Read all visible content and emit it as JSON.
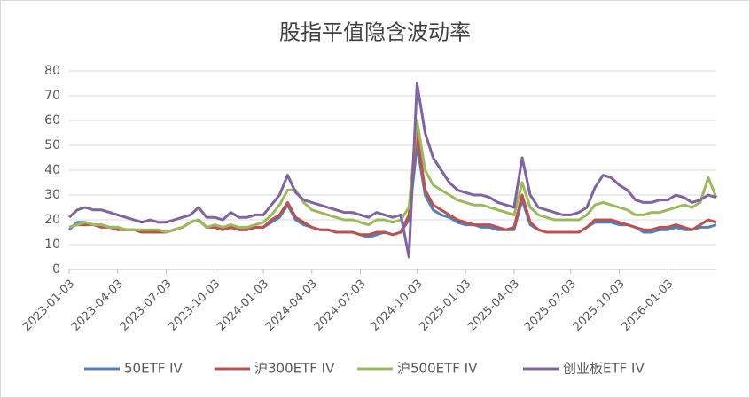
{
  "chart_data": {
    "type": "line",
    "title": "股指平值隐含波动率",
    "x": [
      "2023-01-03",
      "2023-01-17",
      "2023-02-03",
      "2023-02-17",
      "2023-03-03",
      "2023-03-17",
      "2023-04-03",
      "2023-04-17",
      "2023-05-03",
      "2023-05-17",
      "2023-06-03",
      "2023-06-17",
      "2023-07-03",
      "2023-07-17",
      "2023-08-03",
      "2023-08-17",
      "2023-09-03",
      "2023-09-17",
      "2023-10-03",
      "2023-10-17",
      "2023-11-03",
      "2023-11-17",
      "2023-12-03",
      "2023-12-17",
      "2024-01-03",
      "2024-01-17",
      "2024-02-03",
      "2024-02-17",
      "2024-03-03",
      "2024-03-17",
      "2024-04-03",
      "2024-04-17",
      "2024-05-03",
      "2024-05-17",
      "2024-06-03",
      "2024-06-17",
      "2024-07-03",
      "2024-07-17",
      "2024-08-03",
      "2024-08-17",
      "2024-09-03",
      "2024-09-17",
      "2024-09-25",
      "2024-10-03",
      "2024-10-17",
      "2024-11-03",
      "2024-11-17",
      "2024-12-03",
      "2024-12-17",
      "2025-01-03",
      "2025-01-17",
      "2025-02-03",
      "2025-02-17",
      "2025-03-03",
      "2025-03-17",
      "2025-04-03",
      "2025-04-08",
      "2025-04-17",
      "2025-05-03",
      "2025-05-17",
      "2025-06-03",
      "2025-06-17",
      "2025-07-03",
      "2025-07-17",
      "2025-08-03",
      "2025-08-17",
      "2025-09-03",
      "2025-09-17",
      "2025-10-03",
      "2025-10-17",
      "2025-11-03",
      "2025-11-17",
      "2025-12-03",
      "2025-12-17",
      "2026-01-03",
      "2026-01-17",
      "2026-02-03",
      "2026-02-17",
      "2026-03-03",
      "2026-03-17",
      "2026-04-03"
    ],
    "series": [
      {
        "name": "50ETF IV",
        "color": "#4f81bd",
        "values": [
          16,
          19,
          19,
          18,
          18,
          17,
          17,
          16,
          16,
          15,
          16,
          15,
          15,
          16,
          17,
          19,
          20,
          17,
          17,
          16,
          17,
          16,
          16,
          17,
          17,
          19,
          21,
          26,
          20,
          18,
          17,
          16,
          16,
          15,
          15,
          15,
          14,
          13,
          14,
          15,
          14,
          15,
          20,
          50,
          30,
          24,
          22,
          21,
          19,
          18,
          18,
          17,
          17,
          16,
          16,
          16,
          28,
          18,
          16,
          15,
          15,
          15,
          15,
          15,
          17,
          19,
          19,
          19,
          18,
          18,
          17,
          15,
          15,
          16,
          16,
          17,
          16,
          16,
          17,
          17,
          18
        ]
      },
      {
        "name": "沪300ETF IV",
        "color": "#c0504d",
        "values": [
          17,
          18,
          18,
          18,
          17,
          17,
          16,
          16,
          16,
          15,
          15,
          15,
          15,
          16,
          17,
          19,
          20,
          17,
          17,
          16,
          17,
          16,
          16,
          17,
          17,
          20,
          22,
          27,
          21,
          19,
          17,
          16,
          16,
          15,
          15,
          15,
          14,
          14,
          15,
          15,
          14,
          15,
          22,
          55,
          32,
          26,
          24,
          22,
          20,
          19,
          18,
          18,
          18,
          17,
          16,
          17,
          30,
          19,
          16,
          15,
          15,
          15,
          15,
          15,
          17,
          20,
          20,
          20,
          19,
          18,
          17,
          16,
          16,
          17,
          17,
          18,
          17,
          16,
          18,
          20,
          19
        ]
      },
      {
        "name": "沪500ETF IV",
        "color": "#9bbb59",
        "values": [
          17,
          18,
          19,
          18,
          18,
          17,
          17,
          16,
          16,
          16,
          16,
          16,
          15,
          16,
          17,
          19,
          20,
          17,
          18,
          17,
          18,
          17,
          17,
          18,
          19,
          22,
          26,
          32,
          32,
          27,
          24,
          23,
          22,
          21,
          20,
          20,
          19,
          18,
          20,
          20,
          19,
          20,
          25,
          60,
          40,
          34,
          32,
          30,
          28,
          27,
          26,
          26,
          25,
          24,
          23,
          22,
          35,
          25,
          22,
          21,
          20,
          20,
          20,
          20,
          22,
          26,
          27,
          26,
          25,
          24,
          22,
          22,
          23,
          23,
          24,
          25,
          26,
          25,
          27,
          37,
          29
        ]
      },
      {
        "name": "创业板ETF IV",
        "color": "#8064a2",
        "values": [
          21,
          24,
          25,
          24,
          24,
          23,
          22,
          21,
          20,
          19,
          20,
          19,
          19,
          20,
          21,
          22,
          25,
          21,
          21,
          20,
          23,
          21,
          21,
          22,
          22,
          26,
          30,
          38,
          31,
          28,
          27,
          26,
          25,
          24,
          23,
          23,
          22,
          21,
          23,
          22,
          21,
          22,
          5,
          75,
          55,
          45,
          40,
          35,
          32,
          31,
          30,
          30,
          29,
          27,
          26,
          25,
          45,
          30,
          25,
          24,
          23,
          22,
          22,
          23,
          25,
          33,
          38,
          37,
          34,
          32,
          28,
          27,
          27,
          28,
          28,
          30,
          29,
          27,
          28,
          30,
          29
        ]
      }
    ],
    "ylim": [
      0,
      80
    ],
    "yticks": [
      0,
      10,
      20,
      30,
      40,
      50,
      60,
      70,
      80
    ],
    "xticks": [
      "2023-01-03",
      "2023-04-03",
      "2023-07-03",
      "2023-10-03",
      "2024-01-03",
      "2024-04-03",
      "2024-07-03",
      "2024-10-03",
      "2025-01-03",
      "2025-04-03",
      "2025-07-03",
      "2025-10-03",
      "2026-01-03"
    ],
    "grid": true,
    "legend": "bottom"
  }
}
